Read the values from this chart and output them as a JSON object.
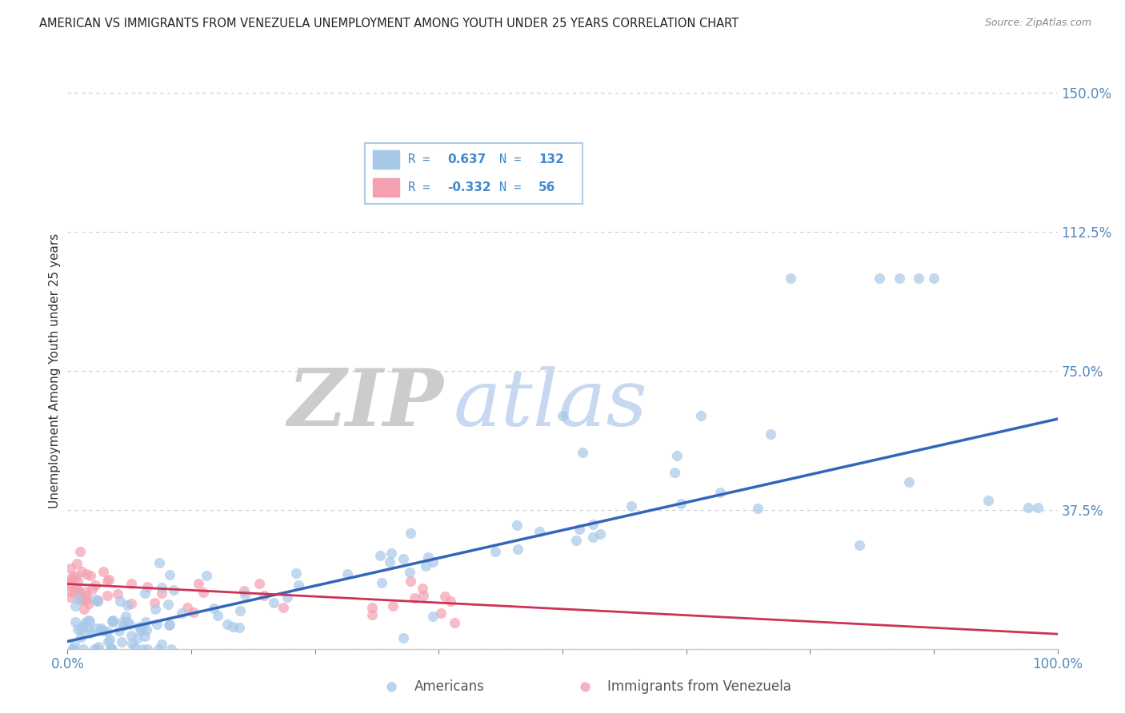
{
  "title": "AMERICAN VS IMMIGRANTS FROM VENEZUELA UNEMPLOYMENT AMONG YOUTH UNDER 25 YEARS CORRELATION CHART",
  "source": "Source: ZipAtlas.com",
  "ylabel": "Unemployment Among Youth under 25 years",
  "watermark_zip": "ZIP",
  "watermark_atlas": "atlas",
  "xlim": [
    0.0,
    1.0
  ],
  "ylim": [
    0.0,
    1.5
  ],
  "yticks": [
    0.0,
    0.375,
    0.75,
    1.125,
    1.5
  ],
  "yticklabels": [
    "",
    "37.5%",
    "75.0%",
    "112.5%",
    "150.0%"
  ],
  "legend1_r": "R =",
  "legend1_rv": "0.637",
  "legend1_n": "N =",
  "legend1_nv": "132",
  "legend2_r": "R =",
  "legend2_rv": "-0.332",
  "legend2_n": "N =",
  "legend2_nv": "56",
  "blue_fill_color": "#a8c8e8",
  "pink_fill_color": "#f4a0b0",
  "blue_line_color": "#3366bb",
  "pink_line_color": "#cc3355",
  "legend_text_color": "#4488cc",
  "legend_box_border": "#aaccee",
  "title_color": "#222222",
  "grid_color": "#cccccc",
  "background_color": "#ffffff",
  "watermark_zip_color": "#cccccc",
  "watermark_atlas_color": "#c8d8f0",
  "ylabel_color": "#333333",
  "tick_color": "#5588bb",
  "source_color": "#888888",
  "bottom_label_color": "#555555",
  "blue_trend_x": [
    0.0,
    1.0
  ],
  "blue_trend_y": [
    0.02,
    0.62
  ],
  "pink_trend_x": [
    0.0,
    1.0
  ],
  "pink_trend_y": [
    0.175,
    0.04
  ]
}
